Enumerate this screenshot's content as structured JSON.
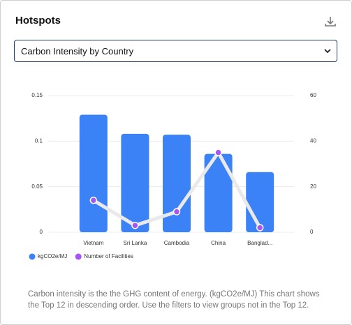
{
  "header": {
    "title": "Hotspots"
  },
  "select": {
    "value": "Carbon Intensity by Country"
  },
  "chart_data": {
    "type": "bar-line",
    "categories": [
      "Vietnam",
      "Sri Lanka",
      "Cambodia",
      "China",
      "Banglad..."
    ],
    "series": [
      {
        "name": "kgCO2e/MJ",
        "color": "#3b82f6",
        "values": [
          0.129,
          0.108,
          0.107,
          0.086,
          0.066
        ]
      },
      {
        "name": "Number of Facilities",
        "color": "#a855f7",
        "line_color": "#e9e9e9",
        "axis": "y2",
        "values": [
          14,
          3,
          9,
          35,
          2
        ]
      }
    ],
    "ylim": [
      0,
      0.15
    ],
    "yticks": [
      0,
      0.05,
      0.1,
      0.15
    ],
    "y2lim": [
      0,
      60
    ],
    "y2ticks": [
      0,
      20,
      40,
      60
    ],
    "grid": true
  },
  "footer": {
    "text": "Carbon intensity is the the GHG content of energy. (kgCO2e/MJ) This chart shows the Top 12 in descending order. Use the filters to view groups not in the Top 12."
  }
}
